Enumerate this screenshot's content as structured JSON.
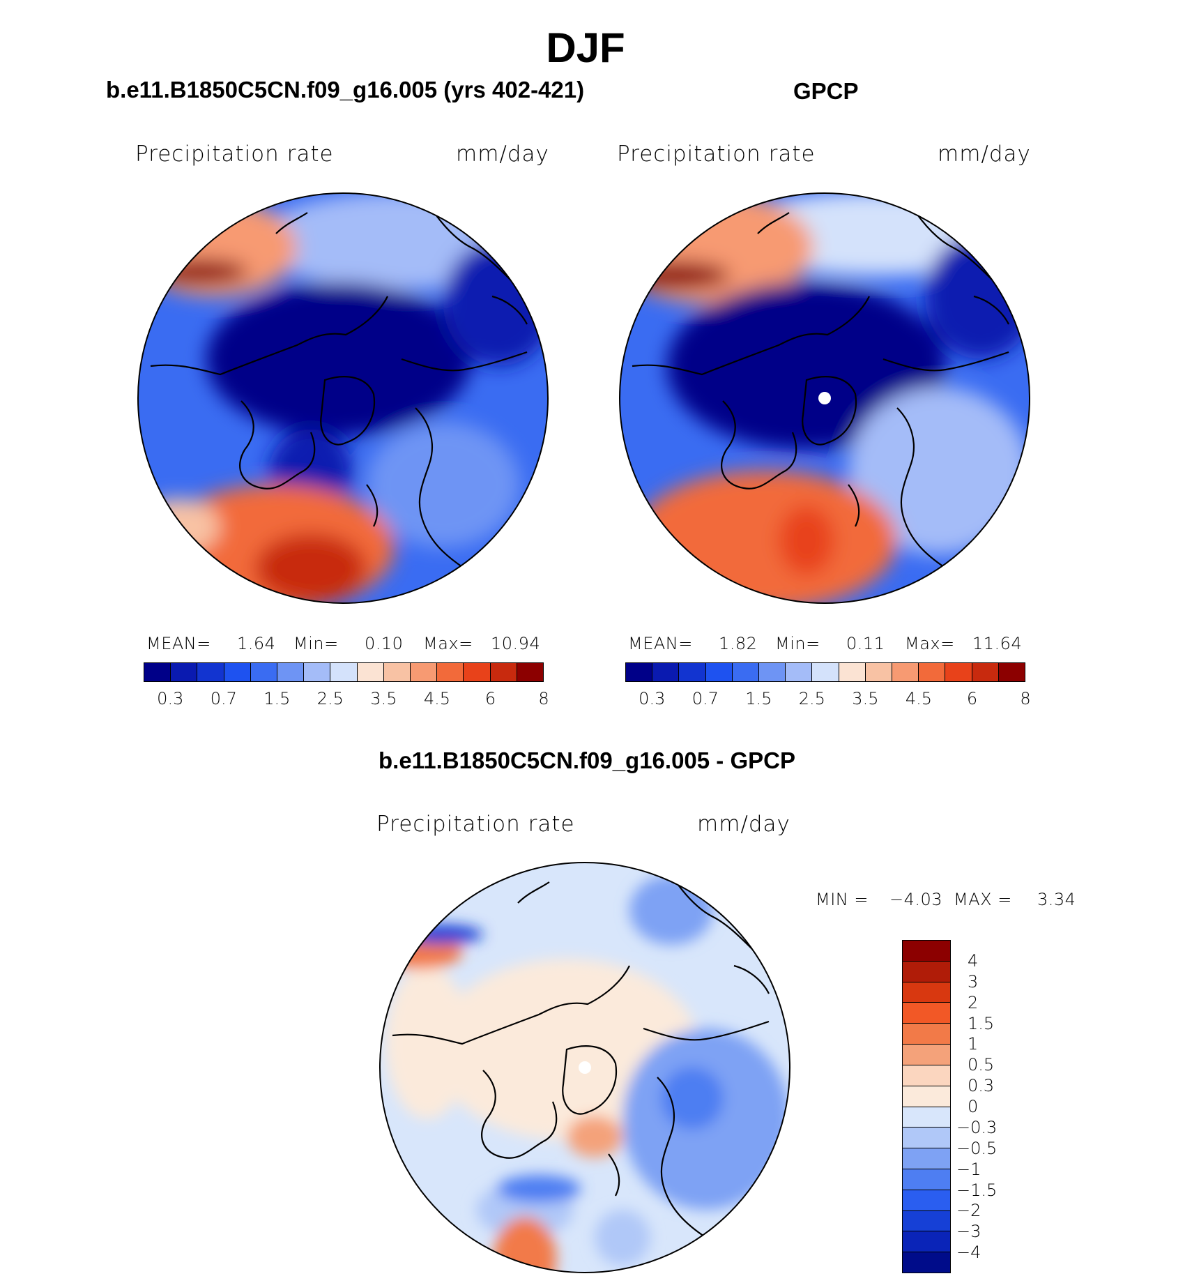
{
  "title": "DJF",
  "colors": {
    "abs_scale": [
      "#000088",
      "#0a1ab0",
      "#1234d0",
      "#1e52f0",
      "#3a6cf2",
      "#6e94f4",
      "#a4bcf8",
      "#d4e2fb",
      "#fbe3d3",
      "#f8c2a4",
      "#f79a72",
      "#f26a3a",
      "#e8421a",
      "#c82a0e",
      "#8c0000"
    ],
    "diff_scale": [
      "#8c0000",
      "#b01c08",
      "#d83810",
      "#f25826",
      "#f27a48",
      "#f4a27a",
      "#fbd6bf",
      "#fbeadb",
      "#d8e6fb",
      "#b0c8f8",
      "#7ea2f4",
      "#4e7ef2",
      "#2a5ef0",
      "#1640d6",
      "#0a24b8",
      "#000c8a"
    ],
    "land": "#000000"
  },
  "chart_data": [
    {
      "type": "heatmap",
      "projection": "north polar stereographic",
      "title": "b.e11.B1850C5CN.f09_g16.005 (yrs 402-421)",
      "variable_label": "Precipitation rate",
      "units": "mm/day",
      "stats": {
        "mean_label": "MEAN=",
        "mean": "1.64",
        "min_label": "Min=",
        "min": "0.10",
        "max_label": "Max=",
        "max": "10.94"
      },
      "contour_levels": [
        "0.2",
        "0.3",
        "0.5",
        "0.7",
        "1",
        "1.5",
        "2",
        "2.5",
        "3",
        "3.5",
        "4",
        "4.5",
        "5",
        "6",
        "7",
        "8"
      ],
      "colorbar_tick_labels": [
        "0.3",
        "0.7",
        "1.5",
        "2.5",
        "3.5",
        "4.5",
        "6",
        "8"
      ]
    },
    {
      "type": "heatmap",
      "projection": "north polar stereographic",
      "title": "GPCP",
      "variable_label": "Precipitation rate",
      "units": "mm/day",
      "stats": {
        "mean_label": "MEAN=",
        "mean": "1.82",
        "min_label": "Min=",
        "min": "0.11",
        "max_label": "Max=",
        "max": "11.64"
      },
      "contour_levels": [
        "0.2",
        "0.3",
        "0.5",
        "0.7",
        "1",
        "1.5",
        "2",
        "2.5",
        "3",
        "3.5",
        "4",
        "4.5",
        "5",
        "6",
        "7",
        "8"
      ],
      "colorbar_tick_labels": [
        "0.3",
        "0.7",
        "1.5",
        "2.5",
        "3.5",
        "4.5",
        "6",
        "8"
      ]
    },
    {
      "type": "heatmap",
      "projection": "north polar stereographic",
      "title": "b.e11.B1850C5CN.f09_g16.005 - GPCP",
      "variable_label": "Precipitation rate",
      "units": "mm/day",
      "stats": {
        "min_label": "MIN =",
        "min": "−4.03",
        "max_label": "MAX =",
        "max": "3.34"
      },
      "colorbar_tick_labels": [
        "4",
        "3",
        "2",
        "1.5",
        "1",
        "0.5",
        "0.3",
        "0",
        "−0.3",
        "−0.5",
        "−1",
        "−1.5",
        "−2",
        "−3",
        "−4"
      ]
    }
  ]
}
